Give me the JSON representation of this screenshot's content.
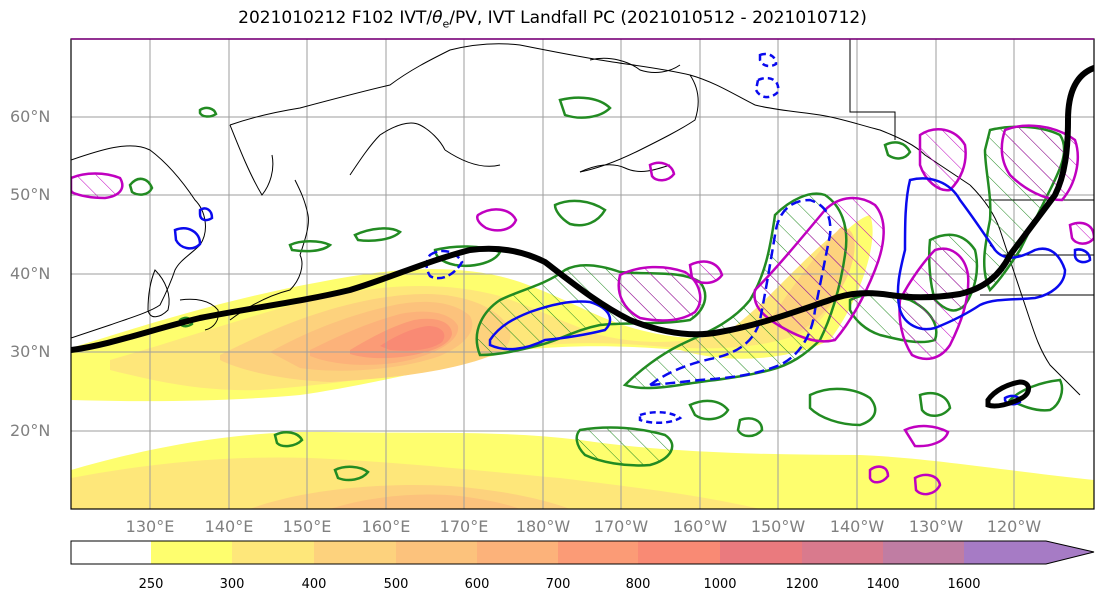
{
  "title": {
    "prefix": "2021010212 F102 IVT/",
    "theta": "θ",
    "theta_sub": "e",
    "suffix": "/PV, IVT Landfall PC (2021010512 - 2021010712)"
  },
  "lat_labels": [
    "60°N",
    "50°N",
    "40°N",
    "30°N",
    "20°N"
  ],
  "lon_labels": [
    "130°E",
    "140°E",
    "150°E",
    "160°E",
    "170°E",
    "180°W",
    "170°W",
    "160°W",
    "150°W",
    "140°W",
    "130°W",
    "120°W"
  ],
  "colorbar": {
    "levels": [
      "250",
      "300",
      "400",
      "500",
      "600",
      "700",
      "800",
      "1000",
      "1200",
      "1400",
      "1600"
    ],
    "colors": [
      "#ffffff",
      "#fefe6e",
      "#fee77a",
      "#fdd27d",
      "#fcc27c",
      "#fcb27a",
      "#fb9b76",
      "#f98a74",
      "#ea7a7e",
      "#d97a8d",
      "#c07da3",
      "#a67bc5"
    ]
  },
  "colors": {
    "ivt_contours": "#228b22",
    "pv": "#c000c0",
    "theta_e": "#0a0aee",
    "landfall_pc": "#000000",
    "coast": "#000000",
    "grid": "#9e9e9e"
  }
}
